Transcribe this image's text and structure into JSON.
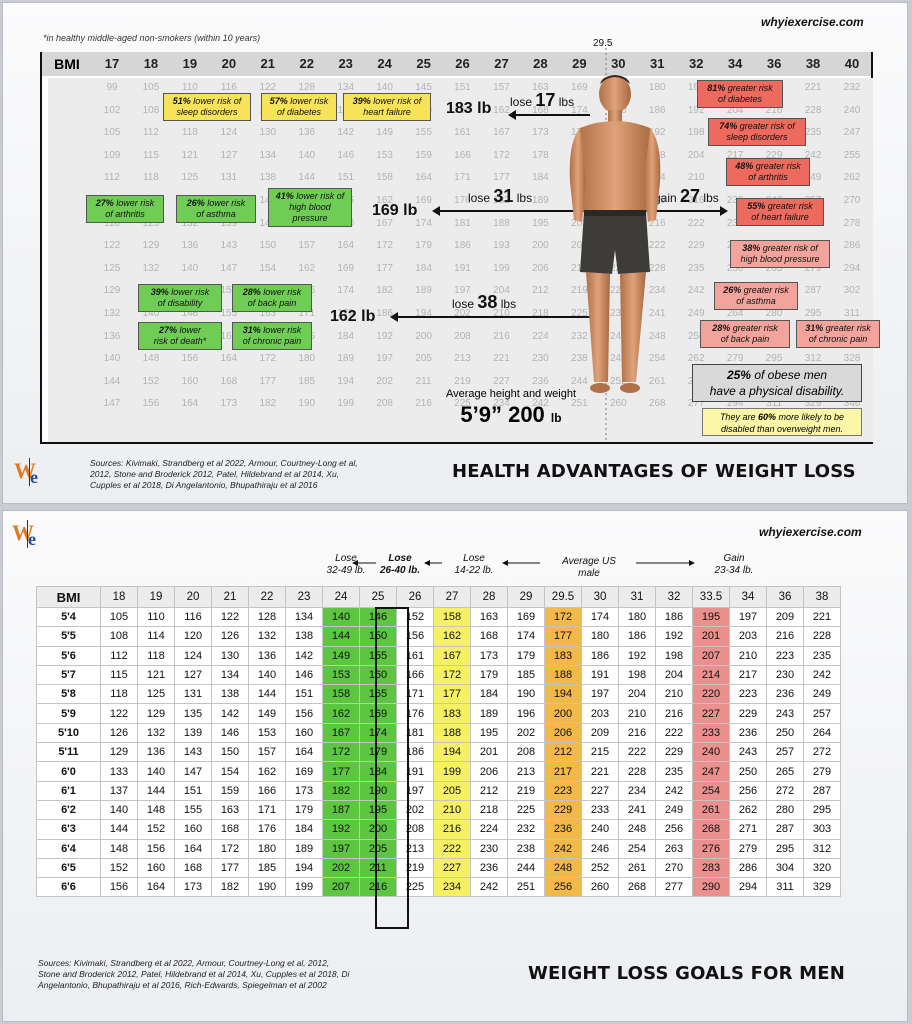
{
  "panel1": {
    "site": "whyiexercise.com",
    "footnote": "*in healthy middle-aged non-smokers (within 10 years)",
    "bmi_label": "BMI",
    "bmi_marker": "29.5",
    "bmi_ticks": [
      "17",
      "18",
      "19",
      "20",
      "21",
      "22",
      "23",
      "24",
      "25",
      "26",
      "27",
      "28",
      "29",
      "30",
      "31",
      "32",
      "34",
      "36",
      "38",
      "40"
    ],
    "ghost_rows": [
      [
        "99",
        "105",
        "110",
        "116",
        "122",
        "128",
        "134",
        "140",
        "145",
        "151",
        "157",
        "163",
        "169",
        "174",
        "180",
        "186",
        "197",
        "209",
        "221",
        "232"
      ],
      [
        "102",
        "108",
        "114",
        "120",
        "126",
        "132",
        "138",
        "144",
        "150",
        "156",
        "162",
        "168",
        "174",
        "180",
        "186",
        "192",
        "204",
        "216",
        "228",
        "240"
      ],
      [
        "105",
        "112",
        "118",
        "124",
        "130",
        "136",
        "142",
        "149",
        "155",
        "161",
        "167",
        "173",
        "179",
        "186",
        "192",
        "198",
        "210",
        "223",
        "235",
        "247"
      ],
      [
        "109",
        "115",
        "121",
        "127",
        "134",
        "140",
        "146",
        "153",
        "159",
        "166",
        "172",
        "178",
        "185",
        "191",
        "198",
        "204",
        "217",
        "229",
        "242",
        "255"
      ],
      [
        "112",
        "118",
        "125",
        "131",
        "138",
        "144",
        "151",
        "158",
        "164",
        "171",
        "177",
        "184",
        "190",
        "197",
        "204",
        "210",
        "223",
        "236",
        "249",
        "262"
      ],
      [
        "115",
        "122",
        "129",
        "135",
        "142",
        "149",
        "155",
        "162",
        "169",
        "176",
        "182",
        "189",
        "196",
        "203",
        "209",
        "216",
        "230",
        "243",
        "257",
        "270"
      ],
      [
        "118",
        "125",
        "132",
        "139",
        "146",
        "153",
        "160",
        "167",
        "174",
        "181",
        "188",
        "195",
        "202",
        "209",
        "216",
        "222",
        "236",
        "250",
        "264",
        "278"
      ],
      [
        "122",
        "129",
        "136",
        "143",
        "150",
        "157",
        "164",
        "172",
        "179",
        "186",
        "193",
        "200",
        "207",
        "215",
        "222",
        "229",
        "243",
        "257",
        "272",
        "286"
      ],
      [
        "125",
        "132",
        "140",
        "147",
        "154",
        "162",
        "169",
        "177",
        "184",
        "191",
        "199",
        "206",
        "213",
        "221",
        "228",
        "235",
        "250",
        "265",
        "279",
        "294"
      ],
      [
        "129",
        "136",
        "144",
        "151",
        "159",
        "166",
        "174",
        "182",
        "189",
        "197",
        "204",
        "212",
        "219",
        "227",
        "234",
        "242",
        "257",
        "272",
        "287",
        "302"
      ],
      [
        "132",
        "140",
        "148",
        "155",
        "163",
        "171",
        "179",
        "186",
        "194",
        "202",
        "210",
        "218",
        "225",
        "233",
        "241",
        "249",
        "264",
        "280",
        "295",
        "311"
      ],
      [
        "136",
        "144",
        "152",
        "160",
        "168",
        "176",
        "184",
        "192",
        "200",
        "208",
        "216",
        "224",
        "232",
        "240",
        "248",
        "256",
        "271",
        "287",
        "303",
        "319"
      ],
      [
        "140",
        "148",
        "156",
        "164",
        "172",
        "180",
        "189",
        "197",
        "205",
        "213",
        "221",
        "230",
        "238",
        "246",
        "254",
        "262",
        "279",
        "295",
        "312",
        "328"
      ],
      [
        "144",
        "152",
        "160",
        "168",
        "177",
        "185",
        "194",
        "202",
        "211",
        "219",
        "227",
        "236",
        "244",
        "252",
        "261",
        "269",
        "286",
        "303",
        "320",
        "337"
      ],
      [
        "147",
        "156",
        "164",
        "173",
        "182",
        "190",
        "199",
        "208",
        "216",
        "225",
        "234",
        "242",
        "251",
        "260",
        "268",
        "277",
        "294",
        "311",
        "329",
        "346"
      ]
    ],
    "yellow_boxes": [
      {
        "pct": "51%",
        "text": "lower risk of",
        "text2": "sleep disorders"
      },
      {
        "pct": "57%",
        "text": "lower risk",
        "text2": "of diabetes"
      },
      {
        "pct": "39%",
        "text": "lower risk of",
        "text2": "heart failure"
      }
    ],
    "green_boxes": [
      {
        "pct": "27%",
        "text": "lower risk",
        "text2": "of arthritis"
      },
      {
        "pct": "26%",
        "text": "lower risk",
        "text2": "of asthma"
      },
      {
        "pct": "41%",
        "text": "lower risk of",
        "text2": "high blood",
        "text3": "pressure"
      },
      {
        "pct": "39%",
        "text": "lower risk",
        "text2": "of disability"
      },
      {
        "pct": "28%",
        "text": "lower risk",
        "text2": "of back pain"
      },
      {
        "pct": "27%",
        "text": "lower",
        "text2": "risk of death*"
      },
      {
        "pct": "31%",
        "text": "lower risk",
        "text2": "of chronic pain"
      }
    ],
    "red_boxes": [
      {
        "pct": "81%",
        "text": "greater risk",
        "text2": "of diabetes"
      },
      {
        "pct": "74%",
        "text": "greater risk of",
        "text2": "sleep disorders"
      },
      {
        "pct": "48%",
        "text": "greater risk",
        "text2": "of arthritis"
      },
      {
        "pct": "55%",
        "text": "greater risk",
        "text2": "of heart failure"
      },
      {
        "pct": "38%",
        "text": "greater risk of",
        "text2": "high blood pressure"
      },
      {
        "pct": "26%",
        "text": "greater risk",
        "text2": "of asthma"
      },
      {
        "pct": "28%",
        "text": "greater risk",
        "text2": "of back pain"
      },
      {
        "pct": "31%",
        "text": "greater risk",
        "text2": "of chronic pain"
      }
    ],
    "targets": [
      {
        "weight": "183 lb",
        "verb": "lose",
        "num": "17",
        "unit": "lbs"
      },
      {
        "weight": "169 lb",
        "verb": "lose",
        "num": "31",
        "unit": "lbs"
      },
      {
        "weight": "162 lb",
        "verb": "lose",
        "num": "38",
        "unit": "lbs"
      }
    ],
    "gain": {
      "verb": "gain",
      "num": "27",
      "unit": "lbs"
    },
    "obese_pct": "25%",
    "obese_line1": "of obese men",
    "obese_line2": "have a physical disability.",
    "disabled_pre": "They are",
    "disabled_pct": "60%",
    "disabled_post": "more likely to be",
    "disabled_line2": "disabled than overweight men.",
    "avg_label": "Average height and weight",
    "avg_height": "5’9” 200",
    "avg_unit": "lb",
    "sources_l1": "Sources:  Kivimaki, Strandberg et al 2022, Armour, Courtney-Long et al,",
    "sources_l2": "2012, Stone and Broderick 2012, Patel, Hildebrand et al 2014, Xu,",
    "sources_l3": "Cupples et al 2018, Di Angelantonio, Bhupathiraju et al 2016",
    "title": "HEALTH ADVANTAGES OF WEIGHT LOSS",
    "logo_w": "W",
    "logo_e": "e"
  },
  "panel2": {
    "site": "whyiexercise.com",
    "logo_w": "W",
    "logo_e": "e",
    "headers": {
      "lose1_a": "Lose",
      "lose1_b": "32-49 lb.",
      "lose2_a": "Lose",
      "lose2_b": "26-40 lb.",
      "lose3_a": "Lose",
      "lose3_b": "14-22 lb.",
      "avg_a": "Average US",
      "avg_b": "male",
      "gain_a": "Gain",
      "gain_b": "23-34 lb."
    },
    "sources_l1": "Sources:  Kivimaki, Strandberg et al 2022, Armour, Courtney-Long et al, 2012,",
    "sources_l2": "Stone and Broderick 2012, Patel, Hildebrand et al 2014, Xu, Cupples et al 2018, Di",
    "sources_l3": "Angelantonio, Bhupathiraju et al 2016, Rich-Edwards, Spiegelman et al 2002",
    "title": "WEIGHT LOSS GOALS FOR MEN"
  },
  "chart_data": {
    "type": "table",
    "title": "WEIGHT LOSS GOALS FOR MEN",
    "row_header": "BMI",
    "columns": [
      "18",
      "19",
      "20",
      "21",
      "22",
      "23",
      "24",
      "25",
      "26",
      "27",
      "28",
      "29",
      "29.5",
      "30",
      "31",
      "32",
      "33.5",
      "34",
      "36",
      "38"
    ],
    "column_highlights": {
      "24": "#5cc641",
      "25": "#5cc641",
      "27": "#f5f064",
      "29.5": "#f3b84a",
      "33.5": "#ec8f8f"
    },
    "rows": [
      {
        "height": "5'4",
        "values": [
          105,
          110,
          116,
          122,
          128,
          134,
          140,
          146,
          152,
          158,
          163,
          169,
          172,
          174,
          180,
          186,
          195,
          197,
          209,
          221
        ]
      },
      {
        "height": "5'5",
        "values": [
          108,
          114,
          120,
          126,
          132,
          138,
          144,
          150,
          156,
          162,
          168,
          174,
          177,
          180,
          186,
          192,
          201,
          203,
          216,
          228
        ]
      },
      {
        "height": "5'6",
        "values": [
          112,
          118,
          124,
          130,
          136,
          142,
          149,
          155,
          161,
          167,
          173,
          179,
          183,
          186,
          192,
          198,
          207,
          210,
          223,
          235
        ]
      },
      {
        "height": "5'7",
        "values": [
          115,
          121,
          127,
          134,
          140,
          146,
          153,
          160,
          166,
          172,
          179,
          185,
          188,
          191,
          198,
          204,
          214,
          217,
          230,
          242
        ]
      },
      {
        "height": "5'8",
        "values": [
          118,
          125,
          131,
          138,
          144,
          151,
          158,
          165,
          171,
          177,
          184,
          190,
          194,
          197,
          204,
          210,
          220,
          223,
          236,
          249
        ]
      },
      {
        "height": "5'9",
        "values": [
          122,
          129,
          135,
          142,
          149,
          156,
          162,
          169,
          176,
          183,
          189,
          196,
          200,
          203,
          210,
          216,
          227,
          229,
          243,
          257
        ]
      },
      {
        "height": "5'10",
        "values": [
          126,
          132,
          139,
          146,
          153,
          160,
          167,
          174,
          181,
          188,
          195,
          202,
          206,
          209,
          216,
          222,
          233,
          236,
          250,
          264
        ]
      },
      {
        "height": "5'11",
        "values": [
          129,
          136,
          143,
          150,
          157,
          164,
          172,
          179,
          186,
          194,
          201,
          208,
          212,
          215,
          222,
          229,
          240,
          243,
          257,
          272
        ]
      },
      {
        "height": "6'0",
        "values": [
          133,
          140,
          147,
          154,
          162,
          169,
          177,
          184,
          191,
          199,
          206,
          213,
          217,
          221,
          228,
          235,
          247,
          250,
          265,
          279
        ]
      },
      {
        "height": "6'1",
        "values": [
          137,
          144,
          151,
          159,
          166,
          173,
          182,
          190,
          197,
          205,
          212,
          219,
          223,
          227,
          234,
          242,
          254,
          256,
          272,
          287
        ]
      },
      {
        "height": "6'2",
        "values": [
          140,
          148,
          155,
          163,
          171,
          179,
          187,
          195,
          202,
          210,
          218,
          225,
          229,
          233,
          241,
          249,
          261,
          262,
          280,
          295
        ]
      },
      {
        "height": "6'3",
        "values": [
          144,
          152,
          160,
          168,
          176,
          184,
          192,
          200,
          208,
          216,
          224,
          232,
          236,
          240,
          248,
          256,
          268,
          271,
          287,
          303
        ]
      },
      {
        "height": "6'4",
        "values": [
          148,
          156,
          164,
          172,
          180,
          189,
          197,
          205,
          213,
          222,
          230,
          238,
          242,
          246,
          254,
          263,
          276,
          279,
          295,
          312
        ]
      },
      {
        "height": "6'5",
        "values": [
          152,
          160,
          168,
          177,
          185,
          194,
          202,
          211,
          219,
          227,
          236,
          244,
          248,
          252,
          261,
          270,
          283,
          286,
          304,
          320
        ]
      },
      {
        "height": "6'6",
        "values": [
          156,
          164,
          173,
          182,
          190,
          199,
          207,
          216,
          225,
          234,
          242,
          251,
          256,
          260,
          268,
          277,
          290,
          294,
          311,
          329
        ]
      }
    ]
  }
}
